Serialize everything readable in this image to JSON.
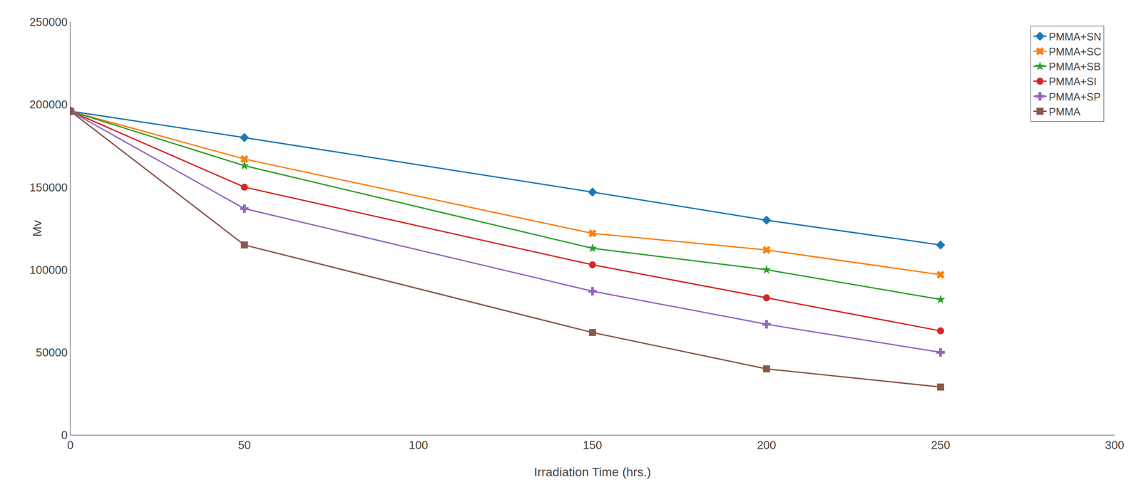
{
  "chart_data": {
    "type": "line",
    "xlabel": "Irradiation Time (hrs.)",
    "ylabel": "Mv",
    "x": [
      0,
      50,
      150,
      200,
      250
    ],
    "series": [
      {
        "name": "PMMA+SN",
        "marker": "diamond",
        "values": [
          196000,
          180000,
          147000,
          130000,
          115000
        ]
      },
      {
        "name": "PMMA+SC",
        "marker": "x",
        "values": [
          196000,
          167000,
          122000,
          112000,
          97000
        ]
      },
      {
        "name": "PMMA+SB",
        "marker": "star",
        "values": [
          196000,
          163000,
          113000,
          100000,
          82000
        ]
      },
      {
        "name": "PMMA+SI",
        "marker": "circle",
        "values": [
          196000,
          150000,
          103000,
          83000,
          63000
        ]
      },
      {
        "name": "PMMA+SP",
        "marker": "plus",
        "values": [
          196000,
          137000,
          87000,
          67000,
          50000
        ]
      },
      {
        "name": "PMMA",
        "marker": "square",
        "values": [
          196000,
          115000,
          62000,
          40000,
          29000
        ]
      }
    ],
    "xlim": [
      0,
      300
    ],
    "ylim": [
      0,
      250000
    ],
    "xticks": [
      0,
      50,
      100,
      150,
      200,
      250,
      300
    ],
    "yticks": [
      0,
      50000,
      100000,
      150000,
      200000,
      250000
    ],
    "legend": "upper right",
    "grid": false
  }
}
